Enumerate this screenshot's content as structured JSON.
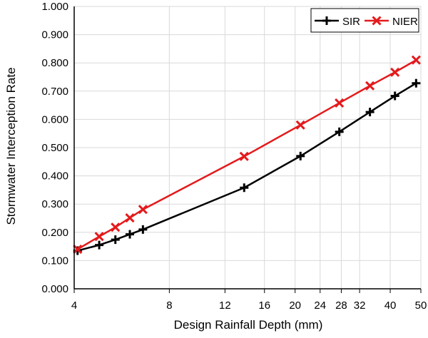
{
  "chart_data": {
    "type": "line",
    "xlabel": "Design Rainfall Depth (mm)",
    "ylabel": "Stormwater Interception Rate",
    "xscale": "log",
    "xlim": [
      4,
      50
    ],
    "ylim": [
      0,
      1
    ],
    "xticks": [
      4,
      8,
      12,
      16,
      20,
      24,
      28,
      32,
      40,
      50
    ],
    "yticks": [
      0.0,
      0.1,
      0.2,
      0.3,
      0.4,
      0.5,
      0.6,
      0.7,
      0.8,
      0.9,
      1.0
    ],
    "ytick_labels": [
      "0.000",
      "0.100",
      "0.200",
      "0.300",
      "0.400",
      "0.500",
      "0.600",
      "0.700",
      "0.800",
      "0.900",
      "1.000"
    ],
    "grid": true,
    "legend_position": "top-right",
    "series": [
      {
        "name": "SIR",
        "color": "#000000",
        "marker": "plus",
        "points": [
          {
            "x": 4.1,
            "y": 0.135
          },
          {
            "x": 4.8,
            "y": 0.155
          },
          {
            "x": 5.4,
            "y": 0.174
          },
          {
            "x": 6.0,
            "y": 0.193
          },
          {
            "x": 6.6,
            "y": 0.21
          },
          {
            "x": 13.8,
            "y": 0.358
          },
          {
            "x": 20.8,
            "y": 0.47
          },
          {
            "x": 27.6,
            "y": 0.556
          },
          {
            "x": 34.5,
            "y": 0.626
          },
          {
            "x": 41.4,
            "y": 0.683
          },
          {
            "x": 48.3,
            "y": 0.728
          }
        ]
      },
      {
        "name": "NIER",
        "color": "#e41a1c",
        "marker": "x",
        "points": [
          {
            "x": 4.1,
            "y": 0.14
          },
          {
            "x": 4.8,
            "y": 0.185
          },
          {
            "x": 5.4,
            "y": 0.218
          },
          {
            "x": 6.0,
            "y": 0.251
          },
          {
            "x": 6.6,
            "y": 0.281
          },
          {
            "x": 13.8,
            "y": 0.469
          },
          {
            "x": 20.8,
            "y": 0.58
          },
          {
            "x": 27.6,
            "y": 0.658
          },
          {
            "x": 34.5,
            "y": 0.719
          },
          {
            "x": 41.4,
            "y": 0.767
          },
          {
            "x": 48.3,
            "y": 0.81
          }
        ]
      }
    ]
  }
}
